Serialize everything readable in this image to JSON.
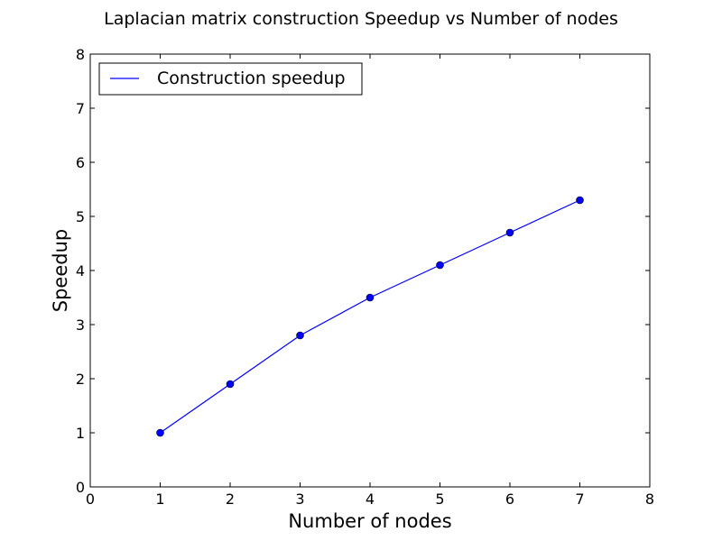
{
  "chart_data": {
    "type": "line",
    "title": "Laplacian matrix construction Speedup vs Number of nodes",
    "xlabel": "Number of nodes",
    "ylabel": "Speedup",
    "xlim": [
      0,
      8
    ],
    "ylim": [
      0,
      8
    ],
    "xticks": [
      "0",
      "1",
      "2",
      "3",
      "4",
      "5",
      "6",
      "7",
      "8"
    ],
    "yticks": [
      "0",
      "1",
      "2",
      "3",
      "4",
      "5",
      "6",
      "7",
      "8"
    ],
    "grid": false,
    "legend_position": "top-left",
    "series": [
      {
        "name": "Construction speedup",
        "color": "#0000ff",
        "marker": "circle",
        "x": [
          1,
          2,
          3,
          4,
          5,
          6,
          7
        ],
        "y": [
          1.0,
          1.9,
          2.8,
          3.5,
          4.1,
          4.7,
          5.3
        ]
      }
    ]
  }
}
